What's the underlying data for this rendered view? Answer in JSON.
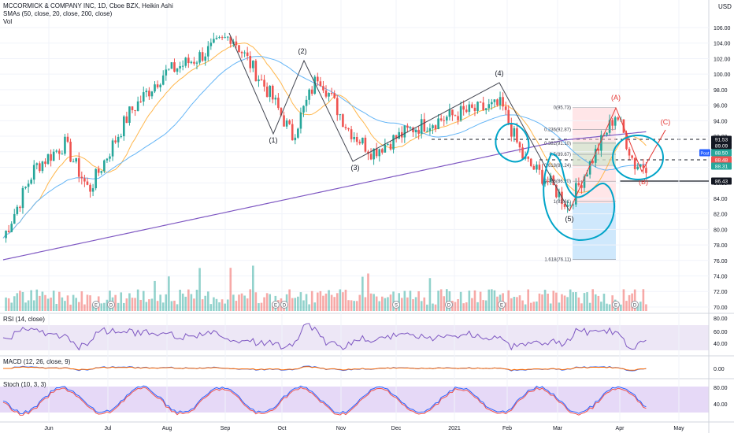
{
  "header": {
    "title": "MCCORMICK & COMPANY INC, 1D, Cboe BZX, Heikin Ashi",
    "sma_label": "SMAs (50, close, 20, close, 200, close)",
    "vol_label": "Vol",
    "currency": "USD"
  },
  "panes": {
    "rsi_label": "RSI (14, close)",
    "macd_label": "MACD (12, 26, close, 9)",
    "stoch_label": "Stoch (10, 3, 3)"
  },
  "colors": {
    "up": "#26a69a",
    "down": "#ef5350",
    "sma50": "#64b5f6",
    "sma20": "#ffb74d",
    "sma200": "#7e57c2",
    "annotation_red": "#e53935",
    "annotation_cyan": "#00a4c8"
  },
  "chart_data": {
    "type": "candlestick",
    "price_ticks": [
      "106.00",
      "104.00",
      "102.00",
      "100.00",
      "98.00",
      "96.00",
      "94.00",
      "92.00",
      "90.00",
      "88.00",
      "86.00",
      "84.00",
      "82.00",
      "80.00",
      "78.00",
      "76.00",
      "74.00",
      "72.00",
      "70.00"
    ],
    "rsi_ticks": [
      "80.00",
      "60.00",
      "40.00"
    ],
    "macd_ticks": [
      "0.00"
    ],
    "stoch_ticks": [
      "80.00",
      "40.00"
    ],
    "x_ticks": [
      "Jun",
      "Jul",
      "Aug",
      "Sep",
      "Oct",
      "Nov",
      "Dec",
      "2021",
      "Feb",
      "Mar",
      "Apr",
      "May"
    ],
    "wave_labels": [
      "(1)",
      "(2)",
      "(3)",
      "(4)",
      "(5)",
      "(A)",
      "(B)",
      "(C)"
    ],
    "fib_labels": [
      "0(95.73)",
      "0.236(92.87)",
      "0.382(91.10)",
      "0.5(89.67)",
      "0.618(88.24)",
      "0.786(86.20)",
      "1(83.61)",
      "1.618(76.11)"
    ],
    "price_badges": [
      {
        "text": "91.53",
        "price": 91.53
      },
      {
        "text": "89.09",
        "price": 89.09
      },
      {
        "text": "88.50",
        "price": 88.5,
        "tag": "Post"
      },
      {
        "text": "88.48",
        "price": 88.48
      },
      {
        "text": "88.31",
        "price": 88.31
      },
      {
        "text": "86.43",
        "price": 86.43
      }
    ],
    "earnings_markers": [
      "E",
      "D",
      "E",
      "D",
      "S",
      "D",
      "E",
      "E",
      "D"
    ],
    "waypoints": [
      {
        "date": "2020-05-01",
        "price": 78
      },
      {
        "date": "2020-05-20",
        "price": 88
      },
      {
        "date": "2020-06-05",
        "price": 91
      },
      {
        "date": "2020-06-18",
        "price": 85
      },
      {
        "date": "2020-07-10",
        "price": 95
      },
      {
        "date": "2020-07-28",
        "price": 100
      },
      {
        "date": "2020-08-15",
        "price": 102
      },
      {
        "date": "2020-09-03",
        "price": 105
      },
      {
        "date": "2020-09-25",
        "price": 97
      },
      {
        "date": "2020-10-06",
        "price": 92
      },
      {
        "date": "2020-10-20",
        "price": 100
      },
      {
        "date": "2020-11-05",
        "price": 93
      },
      {
        "date": "2020-11-18",
        "price": 90
      },
      {
        "date": "2020-12-10",
        "price": 93
      },
      {
        "date": "2021-01-05",
        "price": 95
      },
      {
        "date": "2021-01-27",
        "price": 96
      },
      {
        "date": "2021-02-08",
        "price": 89
      },
      {
        "date": "2021-02-22",
        "price": 86
      },
      {
        "date": "2021-03-04",
        "price": 83
      },
      {
        "date": "2021-03-30",
        "price": 95
      },
      {
        "date": "2021-04-09",
        "price": 88.3
      }
    ]
  }
}
